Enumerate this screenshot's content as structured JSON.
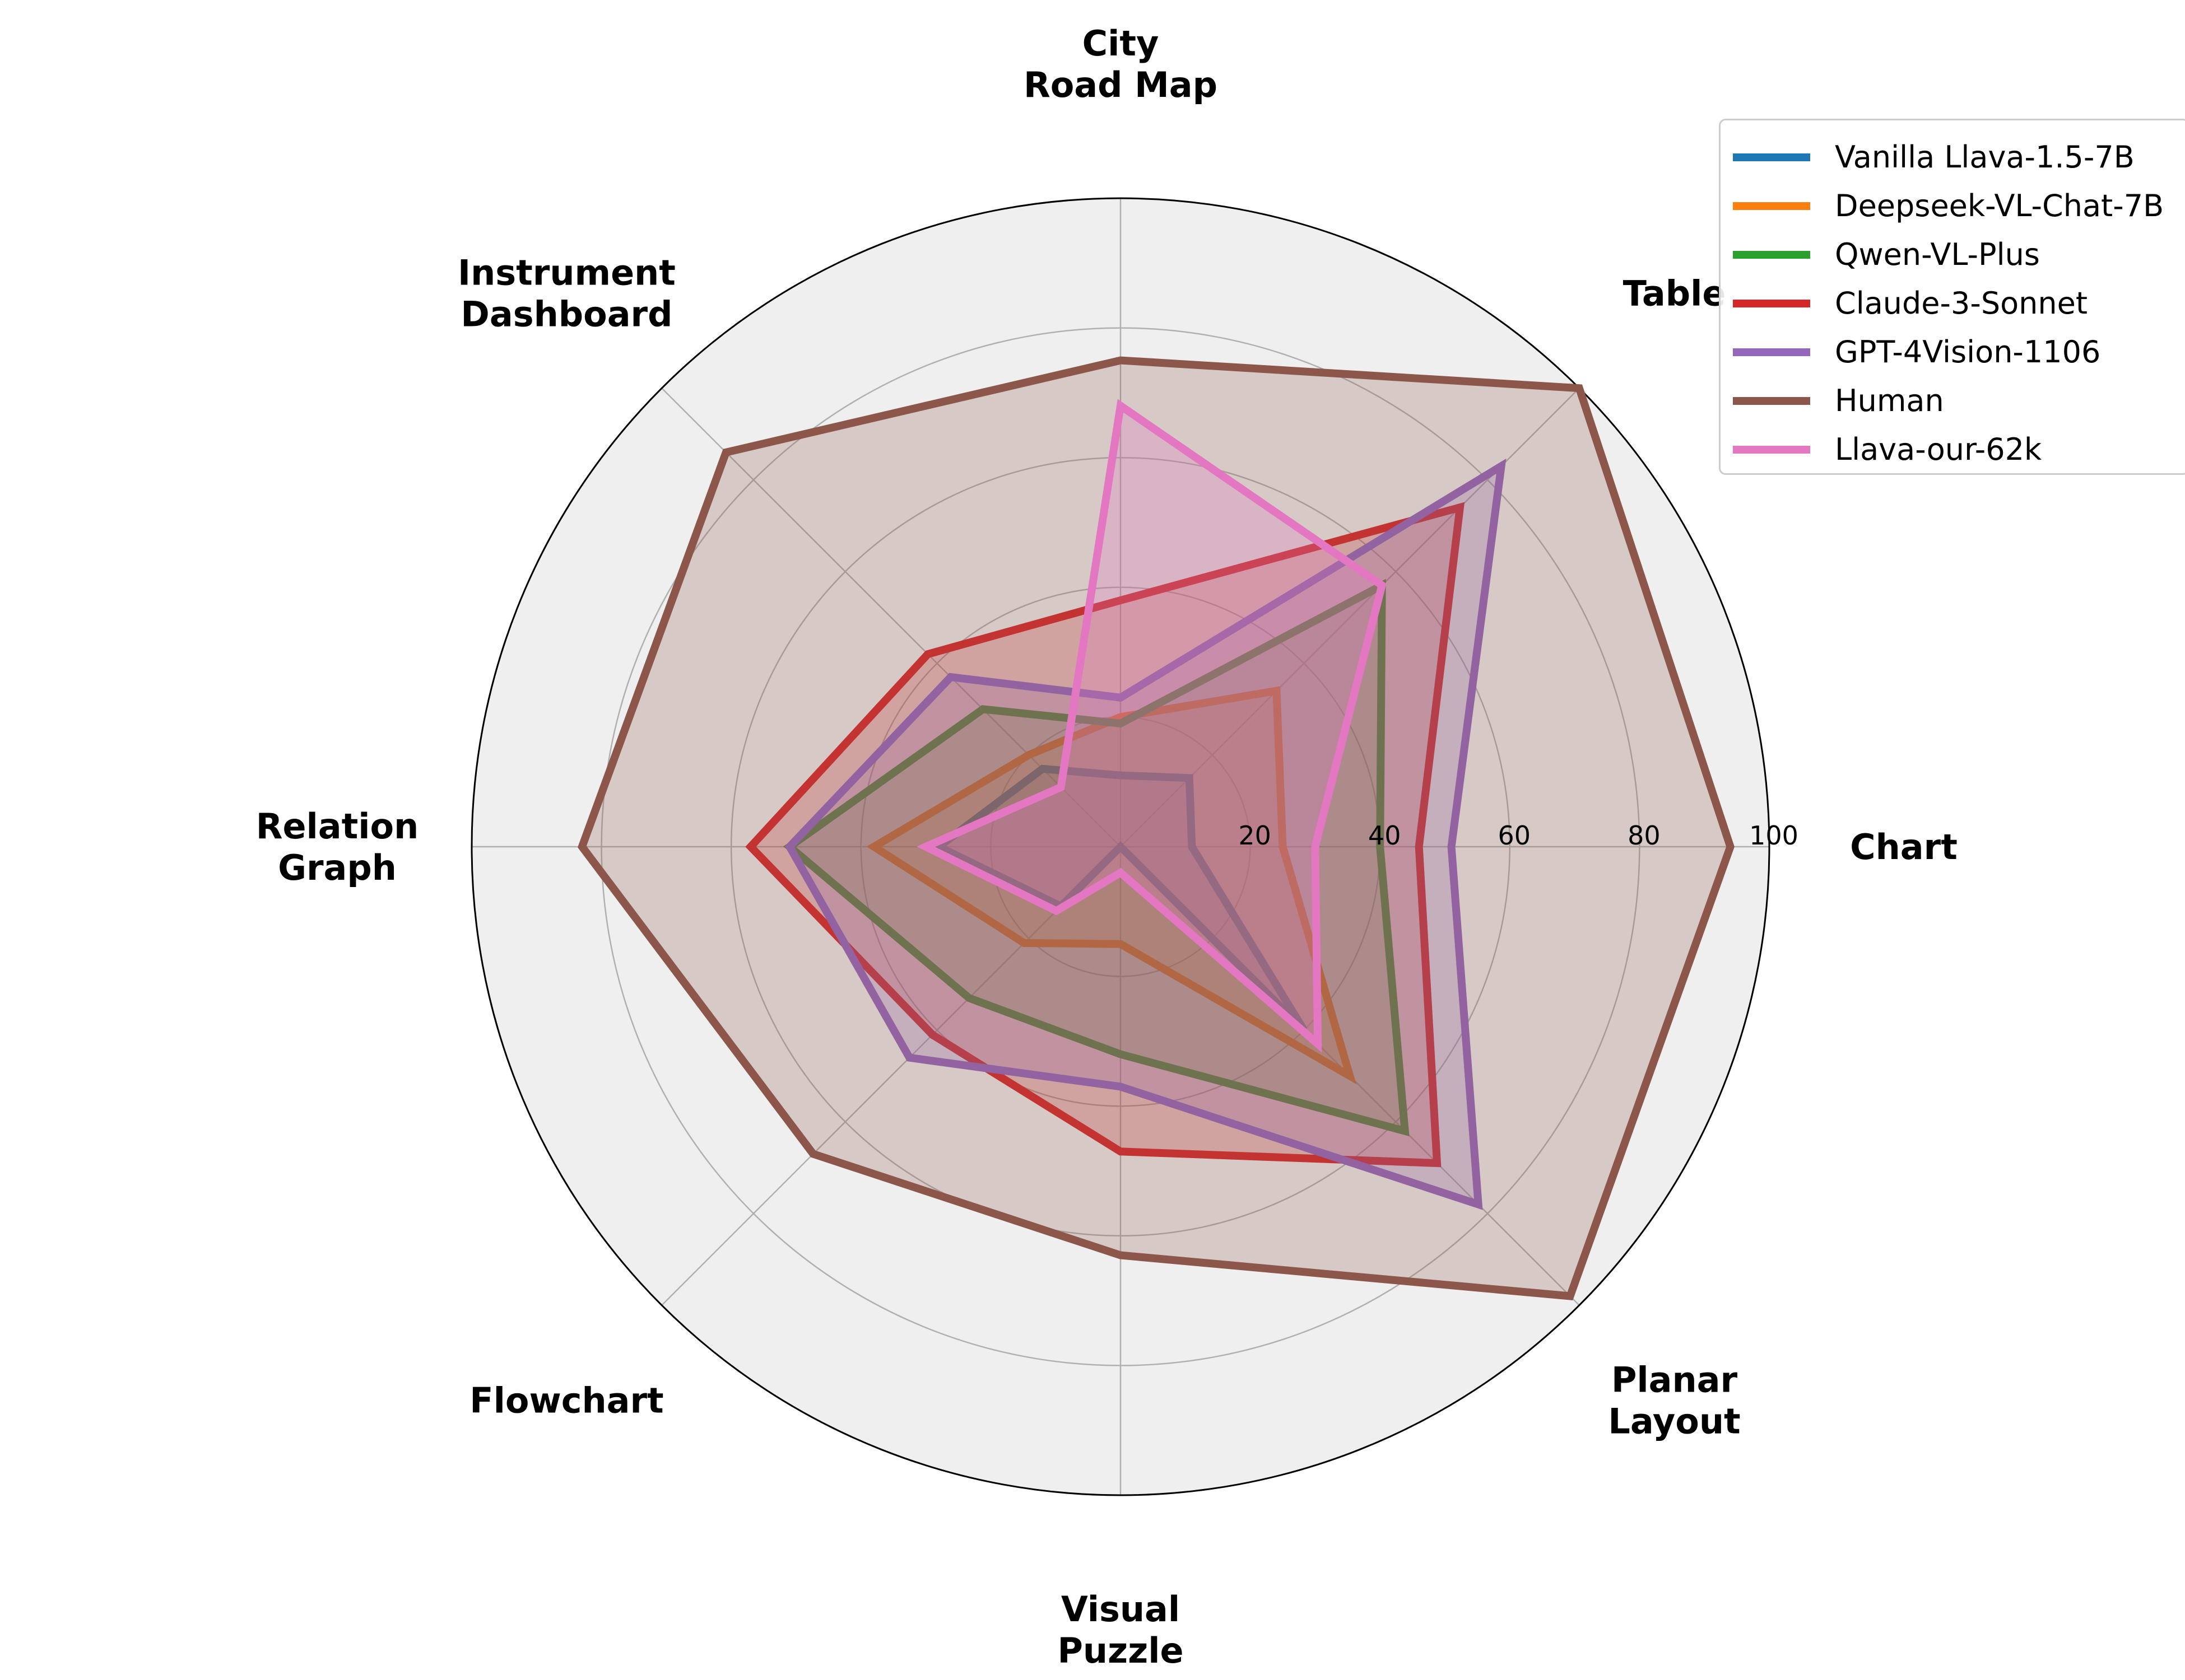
{
  "chart_data": {
    "type": "radar",
    "title": "",
    "categories": [
      "Chart",
      "Table",
      "City\nRoad Map",
      "Instrument\nDashboard",
      "Relation\nGraph",
      "Flowchart",
      "Visual\nPuzzle",
      "Planar\nLayout"
    ],
    "radial_ticks": [
      20,
      40,
      60,
      80,
      100
    ],
    "rlim": [
      0,
      100
    ],
    "grid": true,
    "legend_position": "top-right",
    "series": [
      {
        "name": "Vanilla Llava-1.5-7B",
        "color": "#1f77b4",
        "values": [
          11,
          15,
          11,
          17,
          28,
          13,
          0,
          40
        ]
      },
      {
        "name": "Deepseek-VL-Chat-7B",
        "color": "#ff7f0e",
        "values": [
          25,
          34,
          20,
          20,
          38,
          21,
          15,
          50
        ]
      },
      {
        "name": "Qwen-VL-Plus",
        "color": "#2ca02c",
        "values": [
          40,
          57,
          19,
          30,
          51,
          33,
          32,
          62
        ]
      },
      {
        "name": "Claude-3-Sonnet",
        "color": "#d62728",
        "values": [
          46,
          74,
          38,
          42,
          57,
          41,
          47,
          69
        ]
      },
      {
        "name": "GPT-4Vision-1106",
        "color": "#9467bd",
        "values": [
          51,
          83,
          23,
          37,
          51,
          46,
          37,
          78
        ]
      },
      {
        "name": "Human",
        "color": "#8c564b",
        "values": [
          94,
          100,
          75,
          86,
          83,
          67,
          63,
          98
        ]
      },
      {
        "name": "Llava-our-62k",
        "color": "#e377c2",
        "values": [
          30,
          57,
          68,
          13,
          30,
          14,
          4,
          43
        ]
      }
    ]
  }
}
